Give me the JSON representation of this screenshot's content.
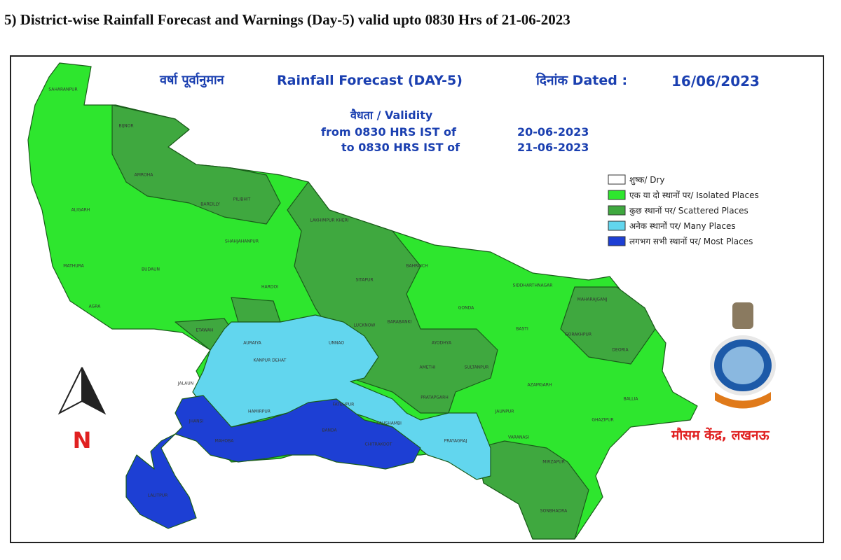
{
  "header": {
    "title": "5) District-wise Rainfall Forecast and Warnings (Day-5) valid upto 0830 Hrs of 21-06-2023"
  },
  "map": {
    "heading": {
      "hindi": "वर्षा पूर्वानुमान",
      "english": "Rainfall Forecast (DAY-5)",
      "dated_label": "दिनांक Dated :",
      "dated": "16/06/2023"
    },
    "validity": {
      "label": "वैधता / Validity",
      "from_label": "from 0830 HRS IST of",
      "from": "20-06-2023",
      "to_label": "to 0830 HRS IST of",
      "to": "21-06-2023"
    },
    "legend": [
      {
        "label": "शुष्क/ Dry",
        "color": "#ffffff"
      },
      {
        "label": "एक या दो स्थानों पर/ Isolated Places",
        "color": "#2ee62e"
      },
      {
        "label": "कुछ स्थानों पर/ Scattered Places",
        "color": "#3fa83f"
      },
      {
        "label": "अनेक स्थानों पर/ Many Places",
        "color": "#62d6ee"
      },
      {
        "label": "लगभग सभी स्थानों पर/ Most Places",
        "color": "#1d3fd4"
      }
    ],
    "north": "N",
    "office": "मौसम केंद्र, लखनऊ",
    "districts": [
      "SAHARANPUR",
      "BIJNOR",
      "AMROHA",
      "BAREILLY",
      "PILIBHIT",
      "LAKHIMPUR KHERI",
      "ALIGARH",
      "MATHURA",
      "AGRA",
      "BUDAUN",
      "SHAHJAHANPUR",
      "HARDOI",
      "SITAPUR",
      "BAHRAICH",
      "GONDA",
      "SIDDHARTHNAGAR",
      "MAHARAJGANJ",
      "GORAKHPUR",
      "DEORIA",
      "BASTI",
      "ETAWAH",
      "AURAIYA",
      "KANPUR DEHAT",
      "UNNAO",
      "LUCKNOW",
      "BARABANKI",
      "AYODHYA",
      "AMETHI",
      "SULTANPUR",
      "JALAUN",
      "HAMIRPUR",
      "FATEHPUR",
      "KAUSHAMBI",
      "PRATAPGARH",
      "PRAYAGRAJ",
      "JAUNPUR",
      "AZAMGARH",
      "VARANASI",
      "GHAZIPUR",
      "BALLIA",
      "MIRZAPUR",
      "SONBHADRA",
      "JHANSI",
      "MAHOBA",
      "BANDA",
      "CHITRAKOOT",
      "LALITPUR"
    ]
  }
}
